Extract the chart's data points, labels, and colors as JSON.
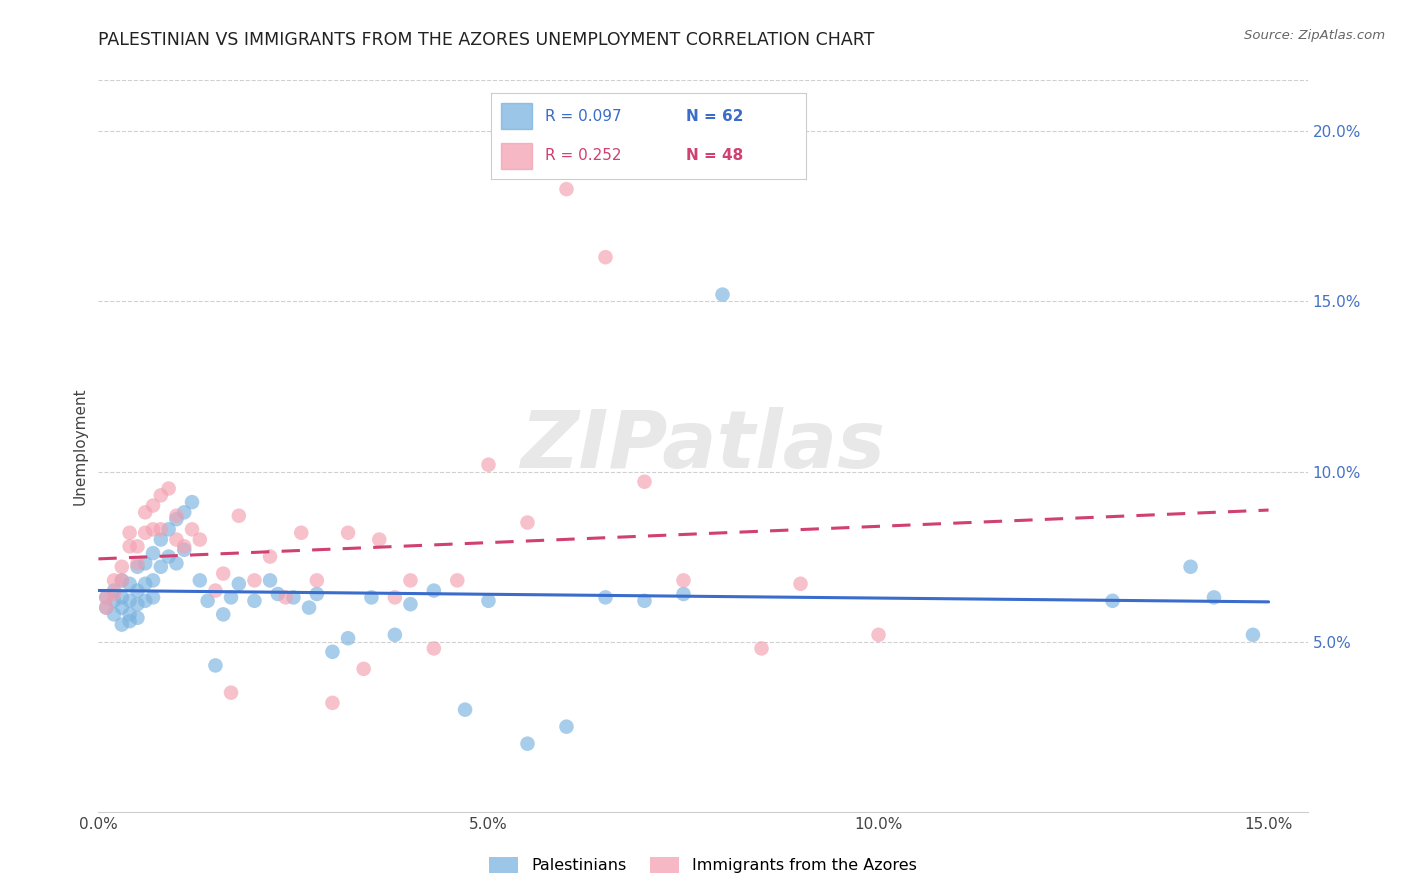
{
  "title": "PALESTINIAN VS IMMIGRANTS FROM THE AZORES UNEMPLOYMENT CORRELATION CHART",
  "source": "Source: ZipAtlas.com",
  "ylabel": "Unemployment",
  "blue_label": "Palestinians",
  "pink_label": "Immigrants from the Azores",
  "blue_R": 0.097,
  "blue_N": 62,
  "pink_R": 0.252,
  "pink_N": 48,
  "xlim": [
    0.0,
    0.155
  ],
  "ylim": [
    0.0,
    0.215
  ],
  "xticks": [
    0.0,
    0.05,
    0.1,
    0.15
  ],
  "yticks_right": [
    0.05,
    0.1,
    0.15,
    0.2
  ],
  "background_color": "#ffffff",
  "watermark": "ZIPatlas",
  "blue_color": "#7ab3e0",
  "pink_color": "#f4a0b0",
  "blue_line_color": "#3a6ccc",
  "pink_line_color": "#d04070",
  "blue_points_x": [
    0.001,
    0.001,
    0.002,
    0.002,
    0.002,
    0.003,
    0.003,
    0.003,
    0.003,
    0.004,
    0.004,
    0.004,
    0.004,
    0.005,
    0.005,
    0.005,
    0.005,
    0.006,
    0.006,
    0.006,
    0.007,
    0.007,
    0.007,
    0.008,
    0.008,
    0.009,
    0.009,
    0.01,
    0.01,
    0.011,
    0.011,
    0.012,
    0.013,
    0.014,
    0.015,
    0.016,
    0.017,
    0.018,
    0.02,
    0.022,
    0.023,
    0.025,
    0.027,
    0.028,
    0.03,
    0.032,
    0.035,
    0.038,
    0.04,
    0.043,
    0.047,
    0.05,
    0.055,
    0.06,
    0.065,
    0.07,
    0.075,
    0.08,
    0.13,
    0.14,
    0.143,
    0.148
  ],
  "blue_points_y": [
    0.063,
    0.06,
    0.065,
    0.062,
    0.058,
    0.068,
    0.063,
    0.06,
    0.055,
    0.067,
    0.062,
    0.058,
    0.056,
    0.072,
    0.065,
    0.061,
    0.057,
    0.073,
    0.067,
    0.062,
    0.076,
    0.068,
    0.063,
    0.08,
    0.072,
    0.083,
    0.075,
    0.086,
    0.073,
    0.088,
    0.077,
    0.091,
    0.068,
    0.062,
    0.043,
    0.058,
    0.063,
    0.067,
    0.062,
    0.068,
    0.064,
    0.063,
    0.06,
    0.064,
    0.047,
    0.051,
    0.063,
    0.052,
    0.061,
    0.065,
    0.03,
    0.062,
    0.02,
    0.025,
    0.063,
    0.062,
    0.064,
    0.152,
    0.062,
    0.072,
    0.063,
    0.052
  ],
  "pink_points_x": [
    0.001,
    0.001,
    0.002,
    0.002,
    0.003,
    0.003,
    0.004,
    0.004,
    0.005,
    0.005,
    0.006,
    0.006,
    0.007,
    0.007,
    0.008,
    0.008,
    0.009,
    0.01,
    0.01,
    0.011,
    0.012,
    0.013,
    0.015,
    0.016,
    0.017,
    0.018,
    0.02,
    0.022,
    0.024,
    0.026,
    0.028,
    0.03,
    0.032,
    0.034,
    0.036,
    0.038,
    0.04,
    0.043,
    0.046,
    0.05,
    0.055,
    0.06,
    0.065,
    0.07,
    0.075,
    0.085,
    0.09,
    0.1
  ],
  "pink_points_y": [
    0.063,
    0.06,
    0.068,
    0.064,
    0.072,
    0.068,
    0.082,
    0.078,
    0.078,
    0.073,
    0.088,
    0.082,
    0.09,
    0.083,
    0.093,
    0.083,
    0.095,
    0.087,
    0.08,
    0.078,
    0.083,
    0.08,
    0.065,
    0.07,
    0.035,
    0.087,
    0.068,
    0.075,
    0.063,
    0.082,
    0.068,
    0.032,
    0.082,
    0.042,
    0.08,
    0.063,
    0.068,
    0.048,
    0.068,
    0.102,
    0.085,
    0.183,
    0.163,
    0.097,
    0.068,
    0.048,
    0.067,
    0.052
  ]
}
